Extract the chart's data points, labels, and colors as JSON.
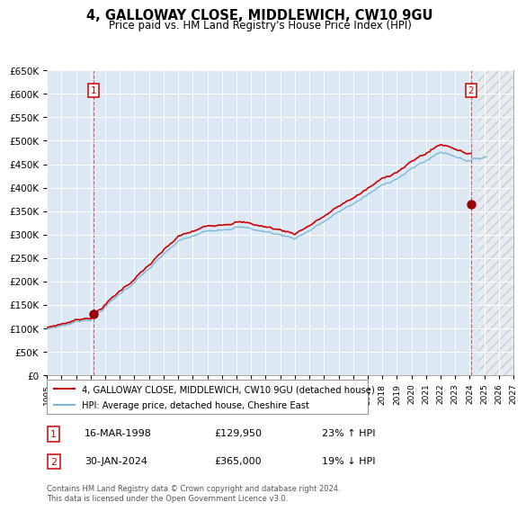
{
  "title": "4, GALLOWAY CLOSE, MIDDLEWICH, CW10 9GU",
  "subtitle": "Price paid vs. HM Land Registry's House Price Index (HPI)",
  "bg_color": "#dce9f5",
  "hpi_line_color": "#7ab8d9",
  "property_line_color": "#cc0000",
  "point_color": "#990000",
  "legend_label_property": "4, GALLOWAY CLOSE, MIDDLEWICH, CW10 9GU (detached house)",
  "legend_label_hpi": "HPI: Average price, detached house, Cheshire East",
  "annotation1_date": "16-MAR-1998",
  "annotation1_price": "£129,950",
  "annotation1_hpi": "23% ↑ HPI",
  "annotation2_date": "30-JAN-2024",
  "annotation2_price": "£365,000",
  "annotation2_hpi": "19% ↓ HPI",
  "footer": "Contains HM Land Registry data © Crown copyright and database right 2024.\nThis data is licensed under the Open Government Licence v3.0.",
  "xmin": 1995.0,
  "xmax": 2027.0,
  "ymin": 0,
  "ymax": 650000,
  "yticks": [
    0,
    50000,
    100000,
    150000,
    200000,
    250000,
    300000,
    350000,
    400000,
    450000,
    500000,
    550000,
    600000,
    650000
  ],
  "xticks": [
    1995,
    1996,
    1997,
    1998,
    1999,
    2000,
    2001,
    2002,
    2003,
    2004,
    2005,
    2006,
    2007,
    2008,
    2009,
    2010,
    2011,
    2012,
    2013,
    2014,
    2015,
    2016,
    2017,
    2018,
    2019,
    2020,
    2021,
    2022,
    2023,
    2024,
    2025,
    2026,
    2027
  ],
  "sale1_x": 1998.21,
  "sale1_y": 129950,
  "sale2_x": 2024.08,
  "sale2_y": 365000,
  "future_start": 2024.58
}
